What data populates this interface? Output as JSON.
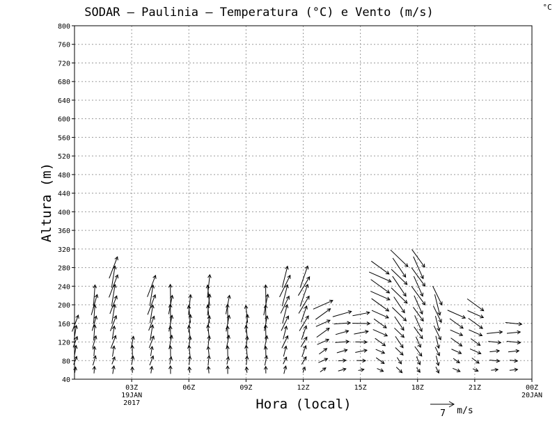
{
  "chart_data": {
    "type": "vector-field",
    "title": "SODAR – Paulinia – Temperatura (°C) e Vento (m/s)",
    "corner_label": "°C",
    "xlabel": "Hora (local)",
    "ylabel": "Altura (m)",
    "y_range": [
      40,
      800
    ],
    "y_ticks": [
      40,
      80,
      120,
      160,
      200,
      240,
      280,
      320,
      360,
      400,
      440,
      480,
      520,
      560,
      600,
      640,
      680,
      720,
      760,
      800
    ],
    "x_range_hours": [
      0,
      24
    ],
    "x_ticks": [
      {
        "hour": 3,
        "label": "03Z",
        "sub": [
          "19JAN",
          "2017"
        ]
      },
      {
        "hour": 6,
        "label": "06Z",
        "sub": []
      },
      {
        "hour": 9,
        "label": "09Z",
        "sub": []
      },
      {
        "hour": 12,
        "label": "12Z",
        "sub": []
      },
      {
        "hour": 15,
        "label": "15Z",
        "sub": []
      },
      {
        "hour": 18,
        "label": "18Z",
        "sub": []
      },
      {
        "hour": 21,
        "label": "21Z",
        "sub": []
      },
      {
        "hour": 24,
        "label": "00Z",
        "sub": [
          "20JAN"
        ]
      }
    ],
    "grid": true,
    "reference_vector": {
      "value": "7",
      "unit": "m/s"
    },
    "heights": [
      60,
      80,
      100,
      120,
      140,
      160,
      180,
      200,
      220,
      240,
      260,
      280,
      300
    ],
    "wind_profiles": [
      {
        "hour": 0.0,
        "top": 170,
        "dir": 195
      },
      {
        "hour": 1.0,
        "top": 230,
        "dir": 190
      },
      {
        "hour": 2.0,
        "top": 290,
        "dir": 195
      },
      {
        "hour": 3.0,
        "top": 130,
        "dir": 185
      },
      {
        "hour": 4.0,
        "top": 250,
        "dir": 195
      },
      {
        "hour": 5.0,
        "top": 230,
        "dir": 185
      },
      {
        "hour": 6.0,
        "top": 210,
        "dir": 180
      },
      {
        "hour": 7.0,
        "top": 250,
        "dir": 180
      },
      {
        "hour": 8.0,
        "top": 210,
        "dir": 185
      },
      {
        "hour": 9.0,
        "top": 190,
        "dir": 180
      },
      {
        "hour": 10.0,
        "top": 230,
        "dir": 185
      },
      {
        "hour": 11.0,
        "top": 270,
        "dir": 200
      },
      {
        "hour": 12.0,
        "top": 270,
        "dir": 205
      },
      {
        "hour": 13.0,
        "top": 210,
        "dir": 240
      },
      {
        "hour": 14.0,
        "top": 190,
        "dir": 260
      },
      {
        "hour": 15.0,
        "top": 190,
        "dir": 265
      },
      {
        "hour": 16.0,
        "top": 290,
        "dir": 300
      },
      {
        "hour": 17.0,
        "top": 310,
        "dir": 320
      },
      {
        "hour": 18.0,
        "top": 300,
        "dir": 330
      },
      {
        "hour": 19.0,
        "top": 230,
        "dir": 340
      },
      {
        "hour": 20.0,
        "top": 190,
        "dir": 300
      },
      {
        "hour": 21.0,
        "top": 210,
        "dir": 300
      },
      {
        "hour": 22.0,
        "top": 140,
        "dir": 270
      },
      {
        "hour": 23.0,
        "top": 160,
        "dir": 270
      }
    ],
    "colors": {
      "axis": "#000000",
      "grid": "#9a9a9a",
      "arrow": "#000000"
    }
  }
}
